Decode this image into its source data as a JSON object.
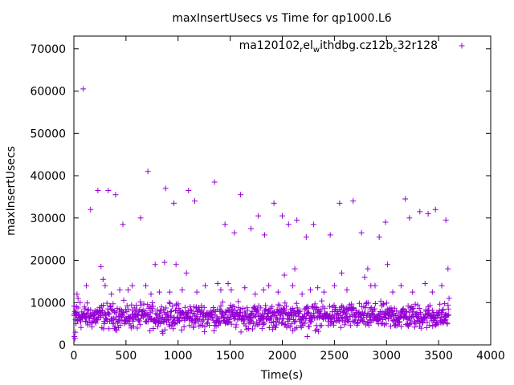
{
  "chart_data": {
    "type": "scatter",
    "title": "maxInsertUsecs vs Time for qp1000.L6",
    "xlabel": "Time(s)",
    "ylabel": "maxInsertUsecs",
    "xlim": [
      0,
      4000
    ],
    "ylim": [
      0,
      73000
    ],
    "x_ticks": [
      0,
      500,
      1000,
      1500,
      2000,
      2500,
      3000,
      3500,
      4000
    ],
    "y_ticks": [
      0,
      10000,
      20000,
      30000,
      40000,
      50000,
      60000,
      70000
    ],
    "grid": false,
    "legend_position": "top-right",
    "marker": "+",
    "color": "#9400d3",
    "series": [
      {
        "name": "ma120102_rel_withdbg.cz12b_c32r128",
        "legend_text": {
          "a": "ma120102",
          "b": "r",
          "c": "el",
          "d": "w",
          "e": "ithdbg.cz12b",
          "f": "c",
          "g": "32r128"
        },
        "dense_band": {
          "x_range": [
            0,
            3600
          ],
          "y_range": [
            2500,
            11000
          ],
          "center_y": 7000
        },
        "points": [
          [
            5,
            2000
          ],
          [
            10,
            1500
          ],
          [
            15,
            3000
          ],
          [
            20,
            5000
          ],
          [
            25,
            9000
          ],
          [
            30,
            12000
          ],
          [
            40,
            11000
          ],
          [
            60,
            10000
          ],
          [
            90,
            60500
          ],
          [
            120,
            14000
          ],
          [
            160,
            32000
          ],
          [
            230,
            36500
          ],
          [
            260,
            18500
          ],
          [
            280,
            15500
          ],
          [
            300,
            14000
          ],
          [
            330,
            36500
          ],
          [
            360,
            12000
          ],
          [
            400,
            35500
          ],
          [
            440,
            13000
          ],
          [
            470,
            28500
          ],
          [
            520,
            13000
          ],
          [
            560,
            14000
          ],
          [
            640,
            30000
          ],
          [
            690,
            14000
          ],
          [
            710,
            41000
          ],
          [
            740,
            12000
          ],
          [
            780,
            19000
          ],
          [
            820,
            12500
          ],
          [
            870,
            19500
          ],
          [
            880,
            37000
          ],
          [
            920,
            12500
          ],
          [
            960,
            33500
          ],
          [
            980,
            19000
          ],
          [
            1040,
            13000
          ],
          [
            1080,
            17000
          ],
          [
            1100,
            36500
          ],
          [
            1160,
            34000
          ],
          [
            1180,
            12500
          ],
          [
            1260,
            14000
          ],
          [
            1350,
            38500
          ],
          [
            1380,
            14500
          ],
          [
            1410,
            13000
          ],
          [
            1450,
            28500
          ],
          [
            1480,
            14500
          ],
          [
            1510,
            13000
          ],
          [
            1540,
            26500
          ],
          [
            1600,
            35500
          ],
          [
            1640,
            13500
          ],
          [
            1700,
            27500
          ],
          [
            1740,
            12000
          ],
          [
            1770,
            30500
          ],
          [
            1820,
            13000
          ],
          [
            1830,
            26000
          ],
          [
            1870,
            14000
          ],
          [
            1920,
            33500
          ],
          [
            1960,
            12500
          ],
          [
            2000,
            30500
          ],
          [
            2020,
            16500
          ],
          [
            2060,
            28500
          ],
          [
            2100,
            14000
          ],
          [
            2120,
            18000
          ],
          [
            2140,
            29500
          ],
          [
            2190,
            12000
          ],
          [
            2230,
            25500
          ],
          [
            2240,
            2000
          ],
          [
            2270,
            13000
          ],
          [
            2300,
            28500
          ],
          [
            2340,
            13500
          ],
          [
            2400,
            12500
          ],
          [
            2460,
            26000
          ],
          [
            2500,
            14000
          ],
          [
            2550,
            33500
          ],
          [
            2570,
            17000
          ],
          [
            2620,
            13000
          ],
          [
            2680,
            34000
          ],
          [
            2760,
            26500
          ],
          [
            2790,
            16000
          ],
          [
            2820,
            18000
          ],
          [
            2850,
            14000
          ],
          [
            2890,
            14000
          ],
          [
            2930,
            25500
          ],
          [
            2990,
            29000
          ],
          [
            3010,
            19000
          ],
          [
            3060,
            12500
          ],
          [
            3140,
            14000
          ],
          [
            3180,
            34500
          ],
          [
            3220,
            30000
          ],
          [
            3250,
            12500
          ],
          [
            3320,
            31500
          ],
          [
            3370,
            14500
          ],
          [
            3400,
            31000
          ],
          [
            3440,
            12500
          ],
          [
            3470,
            32000
          ],
          [
            3530,
            14000
          ],
          [
            3570,
            29500
          ],
          [
            3590,
            18000
          ],
          [
            3600,
            11000
          ]
        ]
      }
    ]
  }
}
